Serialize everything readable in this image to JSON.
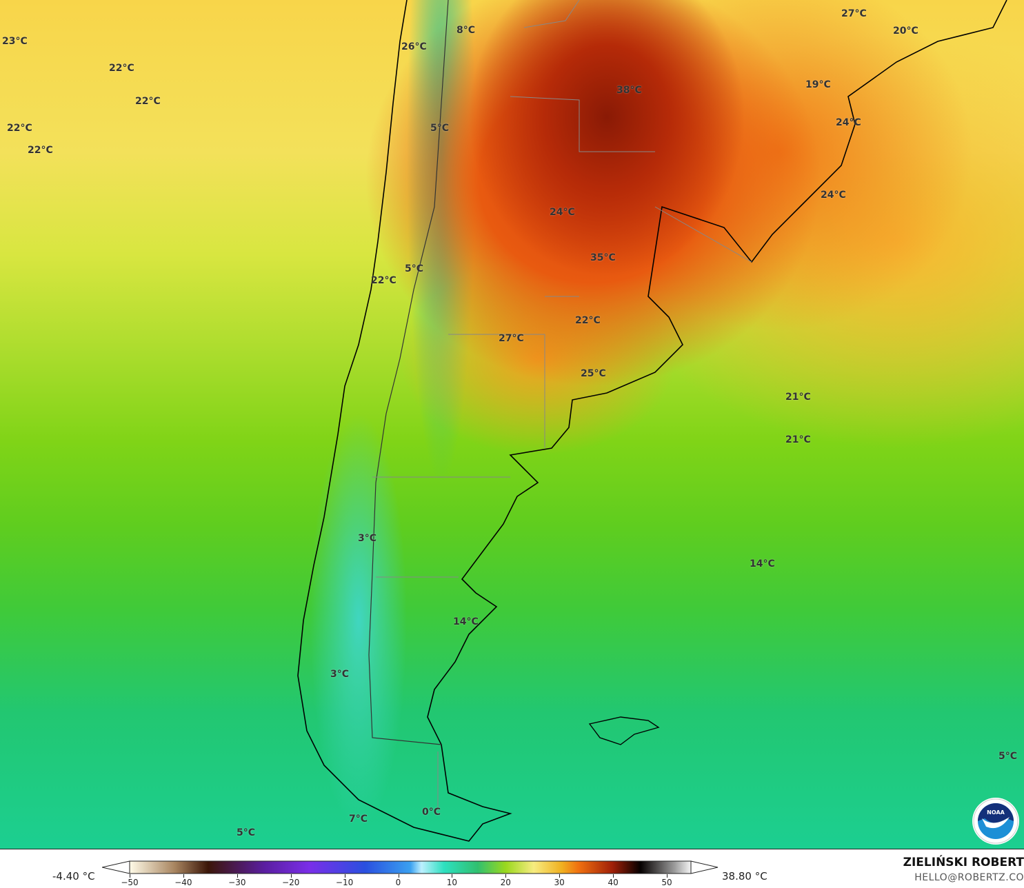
{
  "map": {
    "variable_unit": "°C",
    "labels": [
      "23°C",
      "22°C",
      "22°C",
      "22°C",
      "22°C",
      "26°C",
      "8°C",
      "5°C",
      "38°C",
      "27°C",
      "20°C",
      "19°C",
      "24°C",
      "24°C",
      "24°C",
      "35°C",
      "5°C",
      "22°C",
      "22°C",
      "27°C",
      "25°C",
      "21°C",
      "21°C",
      "3°C",
      "14°C",
      "14°C",
      "3°C",
      "5°C",
      "7°C",
      "0°C",
      "5°C"
    ],
    "colors": {
      "hot": "#8a1a05",
      "warm": "#e85a10",
      "mild": "#f8d54a",
      "cool": "#80d417",
      "cold": "#1ccf91",
      "land_border": "#000000"
    }
  },
  "legend": {
    "min_label": "-4.40 °C",
    "max_label": "38.80 °C",
    "ticks": [
      "−50",
      "−40",
      "−30",
      "−20",
      "−10",
      "0",
      "10",
      "20",
      "30",
      "40",
      "50"
    ],
    "data_min": -4.4,
    "data_max": 38.8
  },
  "credit": {
    "author": "ZIELIŃSKI ROBERT",
    "email": "HELLO@ROBERTZ.CO",
    "logo": "NOAA"
  }
}
